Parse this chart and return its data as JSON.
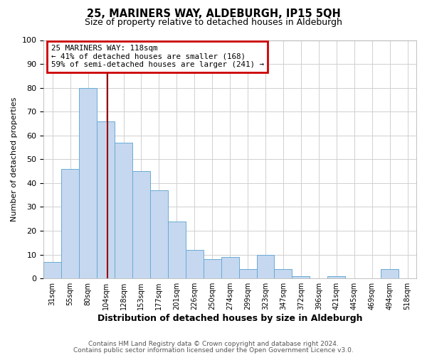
{
  "title": "25, MARINERS WAY, ALDEBURGH, IP15 5QH",
  "subtitle": "Size of property relative to detached houses in Aldeburgh",
  "xlabel": "Distribution of detached houses by size in Aldeburgh",
  "ylabel": "Number of detached properties",
  "footer_line1": "Contains HM Land Registry data © Crown copyright and database right 2024.",
  "footer_line2": "Contains public sector information licensed under the Open Government Licence v3.0.",
  "bin_labels": [
    "31sqm",
    "55sqm",
    "80sqm",
    "104sqm",
    "128sqm",
    "153sqm",
    "177sqm",
    "201sqm",
    "226sqm",
    "250sqm",
    "274sqm",
    "299sqm",
    "323sqm",
    "347sqm",
    "372sqm",
    "396sqm",
    "421sqm",
    "445sqm",
    "469sqm",
    "494sqm",
    "518sqm"
  ],
  "bar_heights": [
    7,
    46,
    80,
    66,
    57,
    45,
    37,
    24,
    12,
    8,
    9,
    4,
    10,
    4,
    1,
    0,
    1,
    0,
    0,
    4,
    0
  ],
  "bar_color": "#c5d8ef",
  "bar_edge_color": "#6aaad4",
  "property_sqm": 118,
  "bin_edges_sqm": [
    31,
    55,
    80,
    104,
    128,
    153,
    177,
    201,
    226,
    250,
    274,
    299,
    323,
    347,
    372,
    396,
    421,
    445,
    469,
    494,
    518,
    542
  ],
  "annotation_title": "25 MARINERS WAY: 118sqm",
  "annotation_line1": "← 41% of detached houses are smaller (168)",
  "annotation_line2": "59% of semi-detached houses are larger (241) →",
  "annotation_box_color": "#ffffff",
  "annotation_box_edge_color": "#cc0000",
  "vline_color": "#990000",
  "ylim": [
    0,
    100
  ],
  "grid_color": "#d0d0d0",
  "background_color": "#ffffff"
}
